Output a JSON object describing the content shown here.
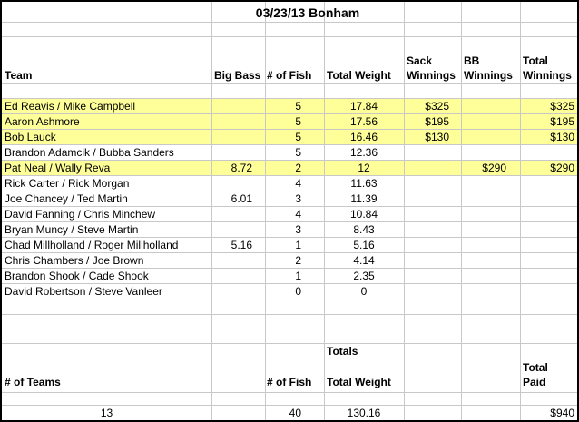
{
  "title": "03/23/13 Bonham",
  "headers": {
    "team": "Team",
    "big_bass": "Big Bass",
    "num_fish": "# of Fish",
    "total_weight": "Total Weight",
    "sack_winnings_1": "Sack",
    "sack_winnings_2": "Winnings",
    "bb_winnings_1": "BB",
    "bb_winnings_2": "Winnings",
    "total_winnings_1": "Total",
    "total_winnings_2": "Winnings"
  },
  "highlight_color": "#ffff99",
  "rows": [
    {
      "team": "Ed Reavis / Mike Campbell",
      "big_bass": "",
      "fish": "5",
      "weight": "17.84",
      "sack": "$325",
      "bb": "",
      "total": "$325",
      "highlight": true
    },
    {
      "team": "Aaron Ashmore",
      "big_bass": "",
      "fish": "5",
      "weight": "17.56",
      "sack": "$195",
      "bb": "",
      "total": "$195",
      "highlight": true
    },
    {
      "team": "Bob Lauck",
      "big_bass": "",
      "fish": "5",
      "weight": "16.46",
      "sack": "$130",
      "bb": "",
      "total": "$130",
      "highlight": true
    },
    {
      "team": "Brandon Adamcik / Bubba Sanders",
      "big_bass": "",
      "fish": "5",
      "weight": "12.36",
      "sack": "",
      "bb": "",
      "total": "",
      "highlight": false
    },
    {
      "team": "Pat Neal / Wally Reva",
      "big_bass": "8.72",
      "fish": "2",
      "weight": "12",
      "sack": "",
      "bb": "$290",
      "total": "$290",
      "highlight": true
    },
    {
      "team": "Rick Carter / Rick Morgan",
      "big_bass": "",
      "fish": "4",
      "weight": "11.63",
      "sack": "",
      "bb": "",
      "total": "",
      "highlight": false
    },
    {
      "team": "Joe Chancey / Ted Martin",
      "big_bass": "6.01",
      "fish": "3",
      "weight": "11.39",
      "sack": "",
      "bb": "",
      "total": "",
      "highlight": false
    },
    {
      "team": "David Fanning / Chris Minchew",
      "big_bass": "",
      "fish": "4",
      "weight": "10.84",
      "sack": "",
      "bb": "",
      "total": "",
      "highlight": false
    },
    {
      "team": "Bryan Muncy / Steve Martin",
      "big_bass": "",
      "fish": "3",
      "weight": "8.43",
      "sack": "",
      "bb": "",
      "total": "",
      "highlight": false
    },
    {
      "team": "Chad Millholland / Roger Millholland",
      "big_bass": "5.16",
      "fish": "1",
      "weight": "5.16",
      "sack": "",
      "bb": "",
      "total": "",
      "highlight": false
    },
    {
      "team": "Chris Chambers / Joe Brown",
      "big_bass": "",
      "fish": "2",
      "weight": "4.14",
      "sack": "",
      "bb": "",
      "total": "",
      "highlight": false
    },
    {
      "team": "Brandon Shook / Cade Shook",
      "big_bass": "",
      "fish": "1",
      "weight": "2.35",
      "sack": "",
      "bb": "",
      "total": "",
      "highlight": false
    },
    {
      "team": "David Robertson / Steve Vanleer",
      "big_bass": "",
      "fish": "0",
      "weight": "0",
      "sack": "",
      "bb": "",
      "total": "",
      "highlight": false
    }
  ],
  "totals": {
    "label": "Totals",
    "num_teams_label": "# of Teams",
    "num_fish_label": "# of Fish",
    "total_weight_label": "Total Weight",
    "total_paid_1": "Total",
    "total_paid_2": "Paid",
    "num_teams": "13",
    "num_fish": "40",
    "total_weight": "130.16",
    "total_paid": "$940"
  }
}
